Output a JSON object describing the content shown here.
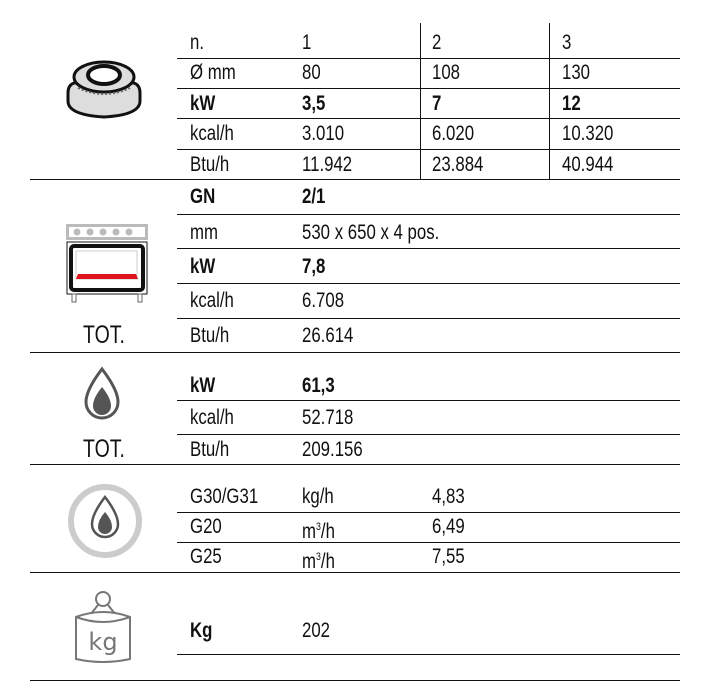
{
  "burners": {
    "rows": [
      {
        "label": "n.",
        "values": [
          "1",
          "2",
          "3"
        ],
        "bold": false
      },
      {
        "label": "Ø mm",
        "values": [
          "80",
          "108",
          "130"
        ],
        "bold": false
      },
      {
        "label": "kW",
        "values": [
          "3,5",
          "7",
          "12"
        ],
        "bold": true
      },
      {
        "label": "kcal/h",
        "values": [
          "3.010",
          "6.020",
          "10.320"
        ],
        "bold": false
      },
      {
        "label": "Btu/h",
        "values": [
          "11.942",
          "23.884",
          "40.944"
        ],
        "bold": false
      }
    ]
  },
  "oven": {
    "tot_label": "TOT.",
    "rows": [
      {
        "label": "GN",
        "value": "2/1",
        "bold": true
      },
      {
        "label": "mm",
        "value": "530 x 650 x 4 pos.",
        "bold": false
      },
      {
        "label": "kW",
        "value": "7,8",
        "bold": true
      },
      {
        "label": "kcal/h",
        "value": "6.708",
        "bold": false
      },
      {
        "label": "Btu/h",
        "value": "26.614",
        "bold": false
      }
    ]
  },
  "total": {
    "tot_label": "TOT.",
    "rows": [
      {
        "label": "kW",
        "value": "61,3",
        "bold": true
      },
      {
        "label": "kcal/h",
        "value": "52.718",
        "bold": false
      },
      {
        "label": "Btu/h",
        "value": "209.156",
        "bold": false
      }
    ]
  },
  "gas": {
    "rows": [
      {
        "label": "G30/G31",
        "unit": "kg/h",
        "value": "4,83"
      },
      {
        "label": "G20",
        "unit_base": "m",
        "unit_sup": "3",
        "unit_rest": "/h",
        "value": "6,49"
      },
      {
        "label": "G25",
        "unit_base": "m",
        "unit_sup": "3",
        "unit_rest": "/h",
        "value": "7,55"
      }
    ]
  },
  "weight": {
    "label": "Kg",
    "value": "202",
    "icon_text": "kg"
  },
  "colors": {
    "line": "#111111",
    "icon_gray": "#555555",
    "icon_light": "#cccccc",
    "oven_red": "#e0141e"
  }
}
